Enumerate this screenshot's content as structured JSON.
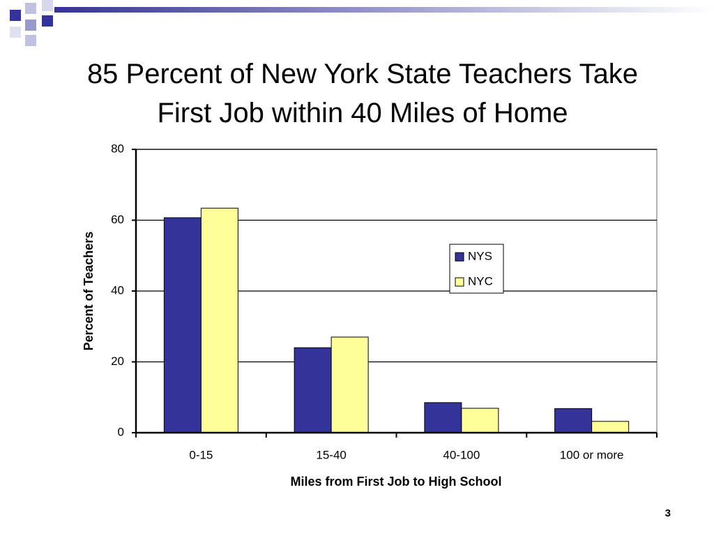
{
  "chart_data": {
    "type": "bar",
    "title": "85 Percent of New York State Teachers Take First Job within 40 Miles of Home",
    "x_label": "Miles from First Job to High School",
    "y_label": "Percent of Teachers",
    "categories": [
      "0-15",
      "15-40",
      "40-100",
      "100 or more"
    ],
    "series": [
      {
        "name": "NYS",
        "color": "#333399",
        "values": [
          60.7,
          24.0,
          8.5,
          6.8
        ]
      },
      {
        "name": "NYC",
        "color": "#ffff99",
        "values": [
          63.4,
          27.0,
          6.9,
          3.2
        ]
      }
    ],
    "ylim": [
      0,
      80
    ],
    "yticks": [
      0,
      20,
      40,
      60,
      80
    ],
    "grid": true
  },
  "page_number": "3"
}
